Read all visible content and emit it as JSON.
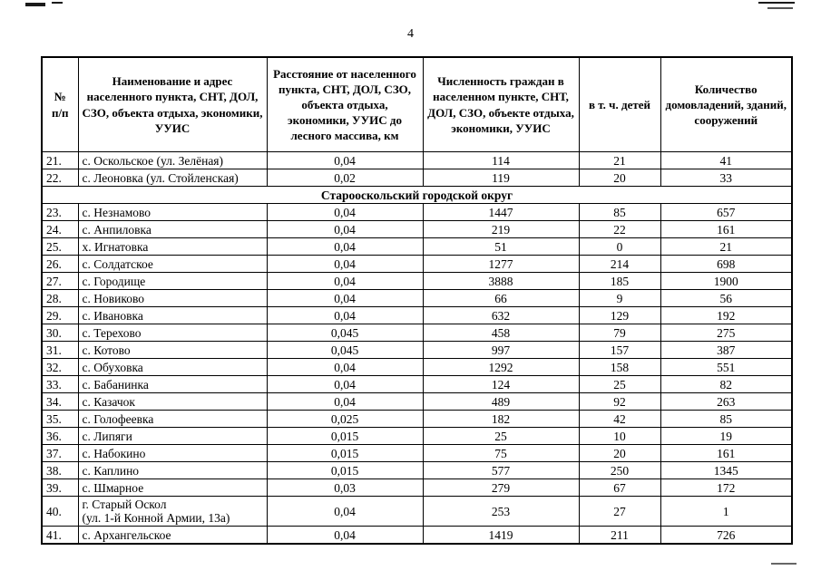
{
  "page": {
    "number": "4"
  },
  "table": {
    "headers": [
      "№\nп/п",
      "Наименование и адрес населенного пункта, СНТ, ДОЛ, СЗО, объекта отдыха, экономики, УУИС",
      "Расстояние от населенного пункта, СНТ, ДОЛ, СЗО, объекта отдыха, экономики, УУИС до лесного массива, км",
      "Численность граждан в населенном пункте, СНТ, ДОЛ, СЗО, объекте отдыха, экономики, УУИС",
      "в т. ч. детей",
      "Количество домовладений, зданий, сооружений"
    ],
    "rows": [
      {
        "num": "21.",
        "name": "с. Оскольское (ул. Зелёная)",
        "distance": "0,04",
        "population": "114",
        "children": "21",
        "buildings": "41"
      },
      {
        "num": "22.",
        "name": "с. Леоновка (ул. Стойленская)",
        "distance": "0,02",
        "population": "119",
        "children": "20",
        "buildings": "33"
      },
      {
        "section": "Старооскольский городской округ"
      },
      {
        "num": "23.",
        "name": "с. Незнамово",
        "distance": "0,04",
        "population": "1447",
        "children": "85",
        "buildings": "657"
      },
      {
        "num": "24.",
        "name": "с. Анпиловка",
        "distance": "0,04",
        "population": "219",
        "children": "22",
        "buildings": "161"
      },
      {
        "num": "25.",
        "name": "х. Игнатовка",
        "distance": "0,04",
        "population": "51",
        "children": "0",
        "buildings": "21"
      },
      {
        "num": "26.",
        "name": "с. Солдатское",
        "distance": "0,04",
        "population": "1277",
        "children": "214",
        "buildings": "698"
      },
      {
        "num": "27.",
        "name": "с. Городище",
        "distance": "0,04",
        "population": "3888",
        "children": "185",
        "buildings": "1900"
      },
      {
        "num": "28.",
        "name": "с. Новиково",
        "distance": "0,04",
        "population": "66",
        "children": "9",
        "buildings": "56"
      },
      {
        "num": "29.",
        "name": "с. Ивановка",
        "distance": "0,04",
        "population": "632",
        "children": "129",
        "buildings": "192"
      },
      {
        "num": "30.",
        "name": "с. Терехово",
        "distance": "0,045",
        "population": "458",
        "children": "79",
        "buildings": "275"
      },
      {
        "num": "31.",
        "name": "с. Котово",
        "distance": "0,045",
        "population": "997",
        "children": "157",
        "buildings": "387"
      },
      {
        "num": "32.",
        "name": "с. Обуховка",
        "distance": "0,04",
        "population": "1292",
        "children": "158",
        "buildings": "551"
      },
      {
        "num": "33.",
        "name": "с. Бабанинка",
        "distance": "0,04",
        "population": "124",
        "children": "25",
        "buildings": "82"
      },
      {
        "num": "34.",
        "name": "с. Казачок",
        "distance": "0,04",
        "population": "489",
        "children": "92",
        "buildings": "263"
      },
      {
        "num": "35.",
        "name": "с. Голофеевка",
        "distance": "0,025",
        "population": "182",
        "children": "42",
        "buildings": "85"
      },
      {
        "num": "36.",
        "name": "с. Липяги",
        "distance": "0,015",
        "population": "25",
        "children": "10",
        "buildings": "19"
      },
      {
        "num": "37.",
        "name": "с. Набокино",
        "distance": "0,015",
        "population": "75",
        "children": "20",
        "buildings": "161"
      },
      {
        "num": "38.",
        "name": "с. Каплино",
        "distance": "0,015",
        "population": "577",
        "children": "250",
        "buildings": "1345"
      },
      {
        "num": "39.",
        "name": "с. Шмарное",
        "distance": "0,03",
        "population": "279",
        "children": "67",
        "buildings": "172"
      },
      {
        "num": "40.",
        "name": "г. Старый Оскол\n(ул. 1-й Конной Армии, 13а)",
        "distance": "0,04",
        "population": "253",
        "children": "27",
        "buildings": "1"
      },
      {
        "num": "41.",
        "name": "с. Архангельское",
        "distance": "0,04",
        "population": "1419",
        "children": "211",
        "buildings": "726"
      }
    ]
  }
}
